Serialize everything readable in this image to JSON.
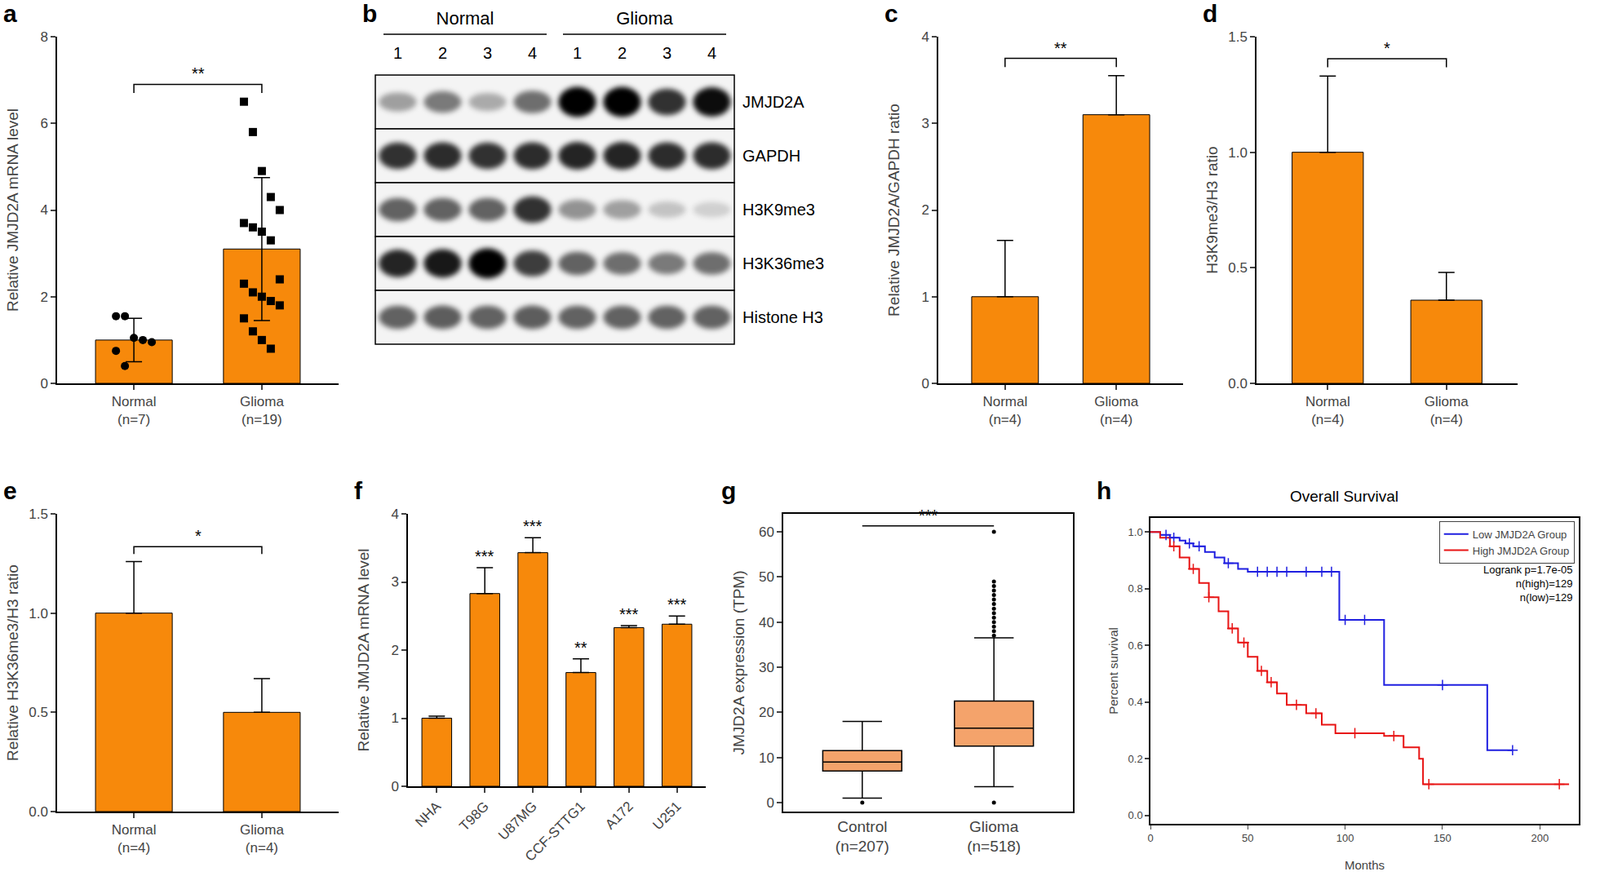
{
  "chart_data": [
    {
      "panel_label": "a",
      "type": "bar",
      "categories": [
        "Normal\n(n=7)",
        "Glioma\n(n=19)"
      ],
      "values": [
        1.0,
        3.1
      ],
      "errors": [
        0.5,
        1.65
      ],
      "points": [
        {
          "marker": "circle",
          "values": [
            1.55,
            1.55,
            1.05,
            1.0,
            0.95,
            0.75,
            0.4
          ]
        },
        {
          "marker": "square",
          "values": [
            6.5,
            5.8,
            4.9,
            4.3,
            4.0,
            3.7,
            3.6,
            3.5,
            3.3,
            2.4,
            2.3,
            2.1,
            2.0,
            1.9,
            1.8,
            1.5,
            1.2,
            1.0,
            0.8
          ]
        }
      ],
      "color": "#f7890b",
      "y_label": "Relative JMJD2A mRNA level",
      "ylim": [
        0,
        8
      ],
      "yticks": [
        0,
        2,
        4,
        6,
        8
      ],
      "significance": [
        {
          "from": 0,
          "to": 1,
          "label": "**"
        }
      ]
    },
    {
      "panel_label": "b",
      "type": "blot",
      "groups": [
        {
          "label": "Normal",
          "lanes": [
            "1",
            "2",
            "3",
            "4"
          ]
        },
        {
          "label": "Glioma",
          "lanes": [
            "1",
            "2",
            "3",
            "4"
          ]
        }
      ],
      "rows": [
        {
          "name": "JMJD2A",
          "values": [
            0.35,
            0.5,
            0.3,
            0.55,
            1.0,
            1.0,
            0.8,
            0.95
          ]
        },
        {
          "name": "GAPDH",
          "values": [
            0.8,
            0.82,
            0.8,
            0.82,
            0.85,
            0.85,
            0.82,
            0.82
          ]
        },
        {
          "name": "H3K9me3",
          "values": [
            0.6,
            0.6,
            0.6,
            0.8,
            0.4,
            0.35,
            0.2,
            0.15
          ]
        },
        {
          "name": "H3K36me3",
          "values": [
            0.85,
            0.9,
            1.0,
            0.75,
            0.6,
            0.55,
            0.5,
            0.55
          ]
        },
        {
          "name": "Histone H3",
          "values": [
            0.6,
            0.62,
            0.6,
            0.62,
            0.6,
            0.6,
            0.6,
            0.6
          ]
        }
      ]
    },
    {
      "panel_label": "c",
      "type": "bar",
      "categories": [
        "Normal\n(n=4)",
        "Glioma\n(n=4)"
      ],
      "values": [
        1.0,
        3.1
      ],
      "errors_plus": [
        0.65,
        0.45
      ],
      "color": "#f7890b",
      "y_label": "Relative JMJD2A/GAPDH ratio",
      "ylim": [
        0,
        4
      ],
      "yticks": [
        0,
        1,
        2,
        3,
        4
      ],
      "significance": [
        {
          "from": 0,
          "to": 1,
          "label": "**"
        }
      ]
    },
    {
      "panel_label": "d",
      "type": "bar",
      "categories": [
        "Normal\n(n=4)",
        "Glioma\n(n=4)"
      ],
      "values": [
        1.0,
        0.36
      ],
      "errors_plus": [
        0.33,
        0.12
      ],
      "color": "#f7890b",
      "y_label": "H3K9me3/H3 ratio",
      "ylim": [
        0,
        1.5
      ],
      "yticks": [
        {
          "value": 0,
          "label": "0.0"
        },
        {
          "value": 0.5,
          "label": "0.5"
        },
        {
          "value": 1,
          "label": "1.0"
        },
        {
          "value": 1.5,
          "label": "1.5"
        }
      ],
      "significance": [
        {
          "from": 0,
          "to": 1,
          "label": "*"
        }
      ]
    },
    {
      "panel_label": "e",
      "type": "bar",
      "categories": [
        "Normal\n(n=4)",
        "Glioma\n(n=4)"
      ],
      "values": [
        1.0,
        0.5
      ],
      "errors_plus": [
        0.26,
        0.17
      ],
      "color": "#f7890b",
      "y_label": "Relative H3K36me3/H3 ratio",
      "ylim": [
        0,
        1.5
      ],
      "yticks": [
        {
          "value": 0,
          "label": "0.0"
        },
        {
          "value": 0.5,
          "label": "0.5"
        },
        {
          "value": 1,
          "label": "1.0"
        },
        {
          "value": 1.5,
          "label": "1.5"
        }
      ],
      "significance": [
        {
          "from": 0,
          "to": 1,
          "label": "*"
        }
      ]
    },
    {
      "panel_label": "f",
      "type": "bar",
      "categories": [
        "NHA",
        "T98G",
        "U87MG",
        "CCF-STTG1",
        "A172",
        "U251"
      ],
      "values": [
        1.0,
        2.83,
        3.43,
        1.67,
        2.33,
        2.38
      ],
      "errors_plus": [
        0.03,
        0.38,
        0.22,
        0.2,
        0.03,
        0.12
      ],
      "significance_labels": [
        null,
        "***",
        "***",
        "**",
        "***",
        "***"
      ],
      "color": "#f7890b",
      "y_label": "Relative JMJD2A mRNA level",
      "ylim": [
        0,
        4
      ],
      "yticks": [
        0,
        1,
        2,
        3,
        4
      ]
    },
    {
      "panel_label": "g",
      "type": "box",
      "categories": [
        "Control\n(n=207)",
        "Glioma\n(n=518)"
      ],
      "q1": [
        7,
        12.5
      ],
      "median": [
        9,
        16.5
      ],
      "q3": [
        11.5,
        22.5
      ],
      "lower_whisker": [
        1,
        3.5
      ],
      "upper_whisker": [
        18,
        36.5
      ],
      "outliers": [
        [
          0
        ],
        [
          0,
          37,
          38,
          39,
          40,
          41,
          42,
          43,
          44,
          45,
          46,
          47,
          48,
          49,
          60
        ]
      ],
      "color": "#f4a36b",
      "y_label": "JMJD2A expression (TPM)",
      "ylim": [
        -2,
        64
      ],
      "yticks": [
        0,
        10,
        20,
        30,
        40,
        50,
        60
      ],
      "significance": [
        {
          "from": 0,
          "to": 1,
          "label": "***"
        }
      ]
    },
    {
      "panel_label": "h",
      "type": "line",
      "title": "Overall Survival",
      "x_label": "Months",
      "y_label": "Percent survival",
      "xlim": [
        0,
        220
      ],
      "xticks": [
        0,
        50,
        100,
        150,
        200
      ],
      "ylim": [
        -0.03,
        1.05
      ],
      "yticks": [
        {
          "value": 0,
          "label": "0.0"
        },
        {
          "value": 0.2,
          "label": "0.2"
        },
        {
          "value": 0.4,
          "label": "0.4"
        },
        {
          "value": 0.6,
          "label": "0.6"
        },
        {
          "value": 0.8,
          "label": "0.8"
        },
        {
          "value": 1,
          "label": "1.0"
        }
      ],
      "legend": "top right",
      "notes": [
        "Logrank p=1.7e-05",
        "n(high)=129",
        "n(low)=129"
      ],
      "series": [
        {
          "name": "Low JMJD2A Group",
          "color": "#1f1fe0",
          "x": [
            0,
            5,
            10,
            15,
            18,
            22,
            28,
            33,
            38,
            45,
            50,
            97,
            120,
            173,
            186
          ],
          "values": [
            1,
            0.99,
            0.98,
            0.97,
            0.96,
            0.95,
            0.93,
            0.91,
            0.89,
            0.87,
            0.86,
            0.69,
            0.46,
            0.23,
            0.23
          ],
          "censored_x": [
            8,
            12,
            20,
            25,
            40,
            55,
            60,
            65,
            70,
            80,
            88,
            93,
            100,
            110,
            150,
            186
          ],
          "censored_values": [
            0.99,
            0.98,
            0.96,
            0.95,
            0.89,
            0.86,
            0.86,
            0.86,
            0.86,
            0.86,
            0.86,
            0.86,
            0.69,
            0.69,
            0.46,
            0.23
          ]
        },
        {
          "name": "High JMJD2A Group",
          "color": "#e81414",
          "x": [
            0,
            5,
            10,
            15,
            20,
            25,
            30,
            35,
            40,
            45,
            50,
            55,
            60,
            65,
            70,
            80,
            88,
            95,
            120,
            130,
            138,
            140,
            215
          ],
          "values": [
            1,
            0.98,
            0.95,
            0.91,
            0.87,
            0.82,
            0.77,
            0.72,
            0.66,
            0.61,
            0.56,
            0.51,
            0.47,
            0.43,
            0.39,
            0.36,
            0.32,
            0.29,
            0.28,
            0.24,
            0.2,
            0.11,
            0.11
          ],
          "censored_x": [
            12,
            22,
            30,
            42,
            48,
            57,
            62,
            75,
            85,
            105,
            125,
            143,
            210
          ],
          "censored_values": [
            0.95,
            0.87,
            0.77,
            0.66,
            0.61,
            0.51,
            0.47,
            0.39,
            0.36,
            0.29,
            0.28,
            0.11,
            0.11
          ]
        }
      ]
    }
  ]
}
